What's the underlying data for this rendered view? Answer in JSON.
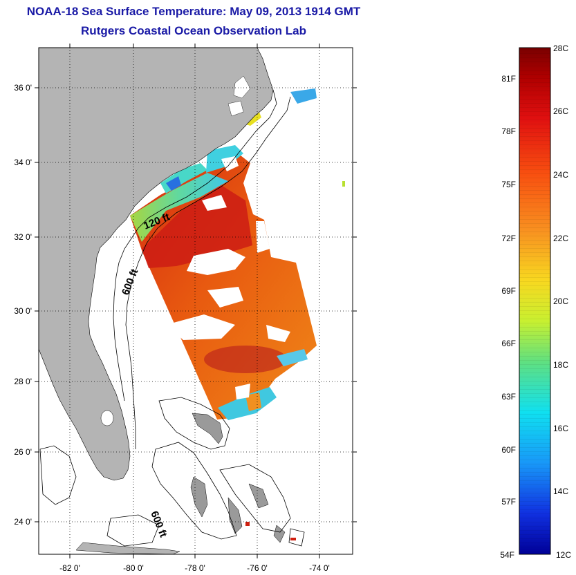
{
  "header": {
    "title": "NOAA-18 Sea Surface Temperature:  May 09, 2013 1914 GMT",
    "subtitle": "Rutgers Coastal Ocean Observation Lab"
  },
  "map": {
    "lat_labels": [
      "36 0'",
      "34 0'",
      "32 0'",
      "30 0'",
      "28 0'",
      "26 0'",
      "24 0'"
    ],
    "lon_labels": [
      "-82 0'",
      "-80 0'",
      "-78 0'",
      "-76 0'",
      "-74 0'"
    ],
    "contour_labels": [
      "120 ft",
      "600 ft",
      "600 ft"
    ],
    "colors": {
      "land": "#b4b4b4",
      "ocean": "#ffffff",
      "grid": "#000000"
    }
  },
  "colorbar": {
    "celsius_labels": [
      "28C",
      "26C",
      "24C",
      "22C",
      "20C",
      "18C",
      "16C",
      "14C",
      "12C"
    ],
    "fahrenheit_labels": [
      "81F",
      "78F",
      "75F",
      "72F",
      "69F",
      "66F",
      "63F",
      "60F",
      "57F",
      "54F"
    ],
    "range_c": [
      12,
      28
    ]
  }
}
